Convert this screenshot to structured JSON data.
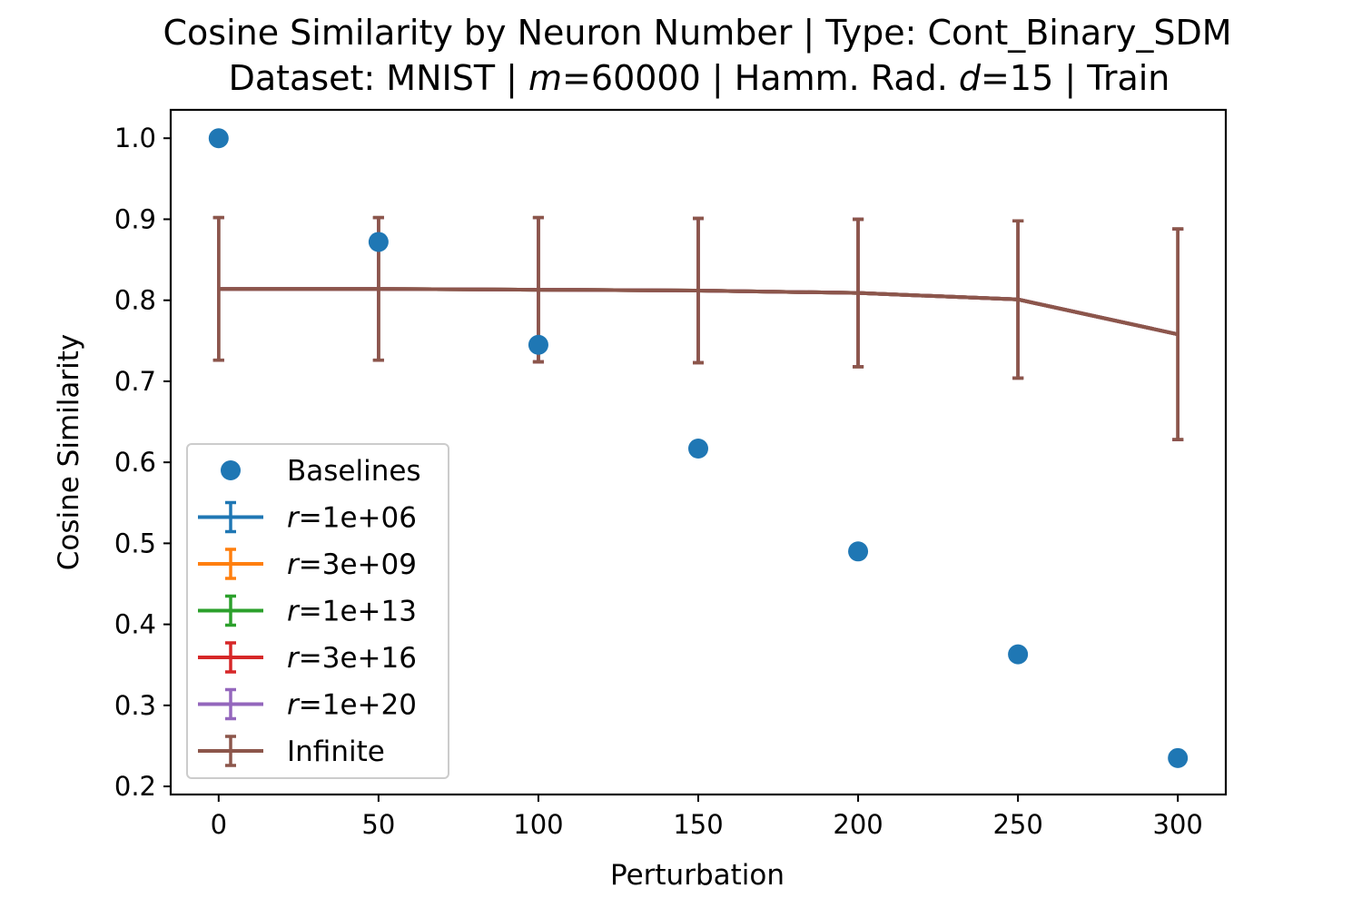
{
  "chart_data": {
    "type": "line",
    "title_line1": "Cosine Similarity by Neuron Number | Type: Cont_Binary_SDM",
    "title_line2_parts": {
      "prefix": "Dataset: MNIST | ",
      "m_symbol": "m",
      "m_value": "=60000 | Hamm. Rad. ",
      "d_symbol": "d",
      "d_value": "=15 | Train"
    },
    "xlabel": "Perturbation",
    "ylabel": "Cosine Similarity",
    "xlim": [
      -15,
      315
    ],
    "ylim": [
      0.19,
      1.035
    ],
    "xticks": [
      0,
      50,
      100,
      150,
      200,
      250,
      300
    ],
    "xtick_labels": [
      "0",
      "50",
      "100",
      "150",
      "200",
      "250",
      "300"
    ],
    "yticks": [
      0.2,
      0.3,
      0.4,
      0.5,
      0.6,
      0.7,
      0.8,
      0.9,
      1.0
    ],
    "ytick_labels": [
      "0.2",
      "0.3",
      "0.4",
      "0.5",
      "0.6",
      "0.7",
      "0.8",
      "0.9",
      "1.0"
    ],
    "legend_position": "lower-left",
    "baselines": {
      "name": "Baselines",
      "color": "#1f77b4",
      "x": [
        0,
        50,
        100,
        150,
        200,
        250,
        300
      ],
      "y": [
        1.0,
        0.872,
        0.745,
        0.617,
        0.49,
        0.363,
        0.235
      ]
    },
    "series": [
      {
        "name_symbol": "r",
        "name_value": "=1e+06",
        "color": "#1f77b4",
        "x": [
          0,
          50,
          100,
          150,
          200,
          250,
          300
        ],
        "y": [
          0.814,
          0.814,
          0.813,
          0.812,
          0.809,
          0.801,
          0.758
        ],
        "yerr": [
          0.088,
          0.088,
          0.089,
          0.089,
          0.091,
          0.097,
          0.13
        ]
      },
      {
        "name_symbol": "r",
        "name_value": "=3e+09",
        "color": "#ff7f0e",
        "x": [
          0,
          50,
          100,
          150,
          200,
          250,
          300
        ],
        "y": [
          0.814,
          0.814,
          0.813,
          0.812,
          0.809,
          0.801,
          0.758
        ],
        "yerr": [
          0.088,
          0.088,
          0.089,
          0.089,
          0.091,
          0.097,
          0.13
        ]
      },
      {
        "name_symbol": "r",
        "name_value": "=1e+13",
        "color": "#2ca02c",
        "x": [
          0,
          50,
          100,
          150,
          200,
          250,
          300
        ],
        "y": [
          0.814,
          0.814,
          0.813,
          0.812,
          0.809,
          0.801,
          0.758
        ],
        "yerr": [
          0.088,
          0.088,
          0.089,
          0.089,
          0.091,
          0.097,
          0.13
        ]
      },
      {
        "name_symbol": "r",
        "name_value": "=3e+16",
        "color": "#d62728",
        "x": [
          0,
          50,
          100,
          150,
          200,
          250,
          300
        ],
        "y": [
          0.814,
          0.814,
          0.813,
          0.812,
          0.809,
          0.801,
          0.758
        ],
        "yerr": [
          0.088,
          0.088,
          0.089,
          0.089,
          0.091,
          0.097,
          0.13
        ]
      },
      {
        "name_symbol": "r",
        "name_value": "=1e+20",
        "color": "#9467bd",
        "x": [
          0,
          50,
          100,
          150,
          200,
          250,
          300
        ],
        "y": [
          0.814,
          0.814,
          0.813,
          0.812,
          0.809,
          0.801,
          0.758
        ],
        "yerr": [
          0.088,
          0.088,
          0.089,
          0.089,
          0.091,
          0.097,
          0.13
        ]
      },
      {
        "name_symbol": "",
        "name_value": "Infinite",
        "color": "#8c564b",
        "x": [
          0,
          50,
          100,
          150,
          200,
          250,
          300
        ],
        "y": [
          0.814,
          0.814,
          0.813,
          0.812,
          0.809,
          0.801,
          0.758
        ],
        "yerr": [
          0.088,
          0.088,
          0.089,
          0.089,
          0.091,
          0.097,
          0.13
        ]
      }
    ]
  }
}
